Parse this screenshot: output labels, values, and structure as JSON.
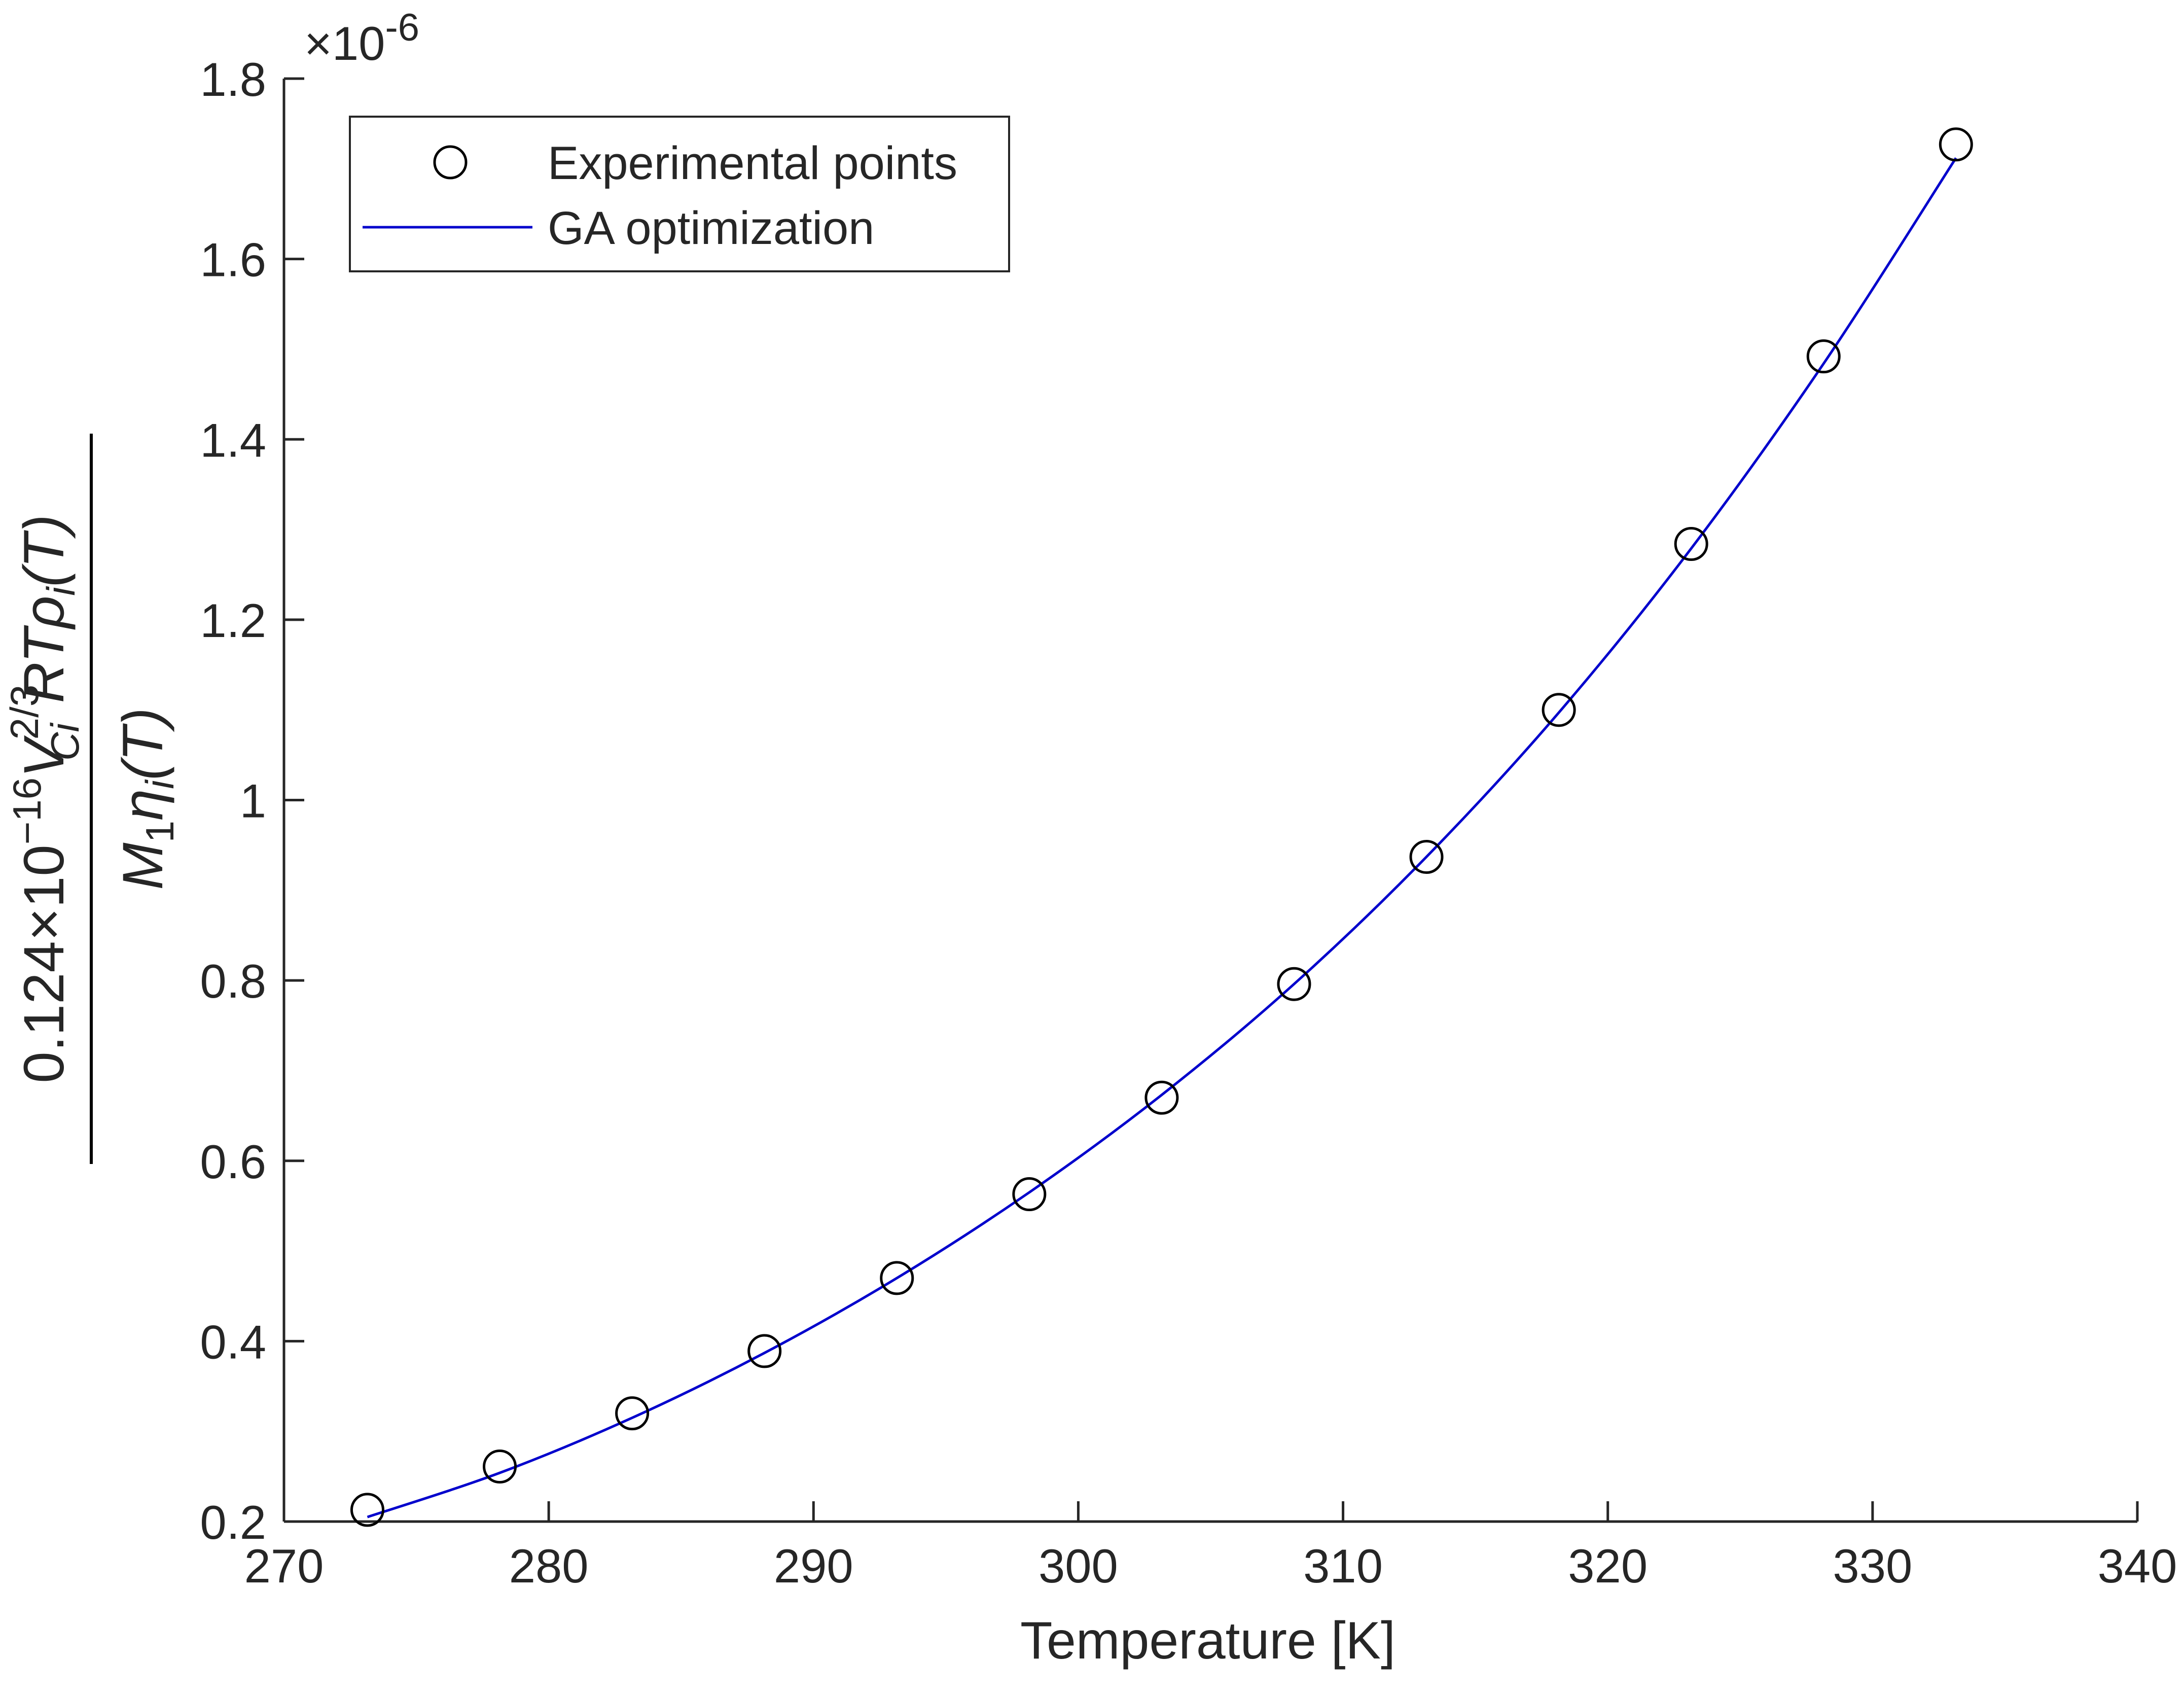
{
  "chart_data": {
    "type": "scatter",
    "xlabel": "Temperature [K]",
    "ylabel": "0.124×10^-16 V_Ci^2/3 R T ρ_i(T) / M_1 η_i(T)",
    "ylabel_parts": {
      "coef": "0.124",
      "times": "×",
      "ten": "10",
      "ten_exp": "−16",
      "v": "V",
      "v_sub": "Ci",
      "v_sup": "2/3",
      "rt": "RT",
      "rho": "ρ",
      "rho_sub": "i",
      "rho_arg": "(T)",
      "m": "M",
      "m_sub": "1",
      "eta": "η",
      "eta_sub": "i",
      "eta_arg": "(T)"
    },
    "y_multiplier": {
      "base": "×10",
      "exponent": "-6"
    },
    "xlim": [
      270,
      340
    ],
    "ylim": [
      0.2,
      1.8
    ],
    "x_ticks": [
      270,
      280,
      290,
      300,
      310,
      320,
      330,
      340
    ],
    "x_tick_labels": [
      "270",
      "280",
      "290",
      "300",
      "310",
      "320",
      "330",
      "340"
    ],
    "y_ticks": [
      0.2,
      0.4,
      0.6,
      0.8,
      1.0,
      1.2,
      1.4,
      1.6,
      1.8
    ],
    "y_tick_labels": [
      "0.2",
      "0.4",
      "0.6",
      "0.8",
      "1",
      "1.2",
      "1.4",
      "1.6",
      "1.8"
    ],
    "grid": false,
    "legend_position": "top-left",
    "series": [
      {
        "name": "Experimental points",
        "kind": "markers",
        "marker": "open-circle",
        "color": "#000000",
        "x": [
          273.15,
          278.15,
          283.15,
          288.15,
          293.15,
          298.15,
          303.15,
          308.15,
          313.15,
          318.15,
          323.15,
          328.15,
          333.15
        ],
        "y": [
          0.213,
          0.261,
          0.32,
          0.389,
          0.47,
          0.563,
          0.67,
          0.796,
          0.937,
          1.1,
          1.284,
          1.492,
          1.727
        ]
      },
      {
        "name": "GA optimization",
        "kind": "line",
        "color": "#0000cc",
        "x": [
          273.15,
          278.15,
          283.15,
          288.15,
          293.15,
          298.15,
          303.15,
          308.15,
          313.15,
          318.15,
          323.15,
          328.15,
          333.15
        ],
        "y": [
          0.205,
          0.254,
          0.315,
          0.387,
          0.47,
          0.565,
          0.673,
          0.796,
          0.937,
          1.097,
          1.279,
          1.484,
          1.712
        ]
      }
    ]
  }
}
